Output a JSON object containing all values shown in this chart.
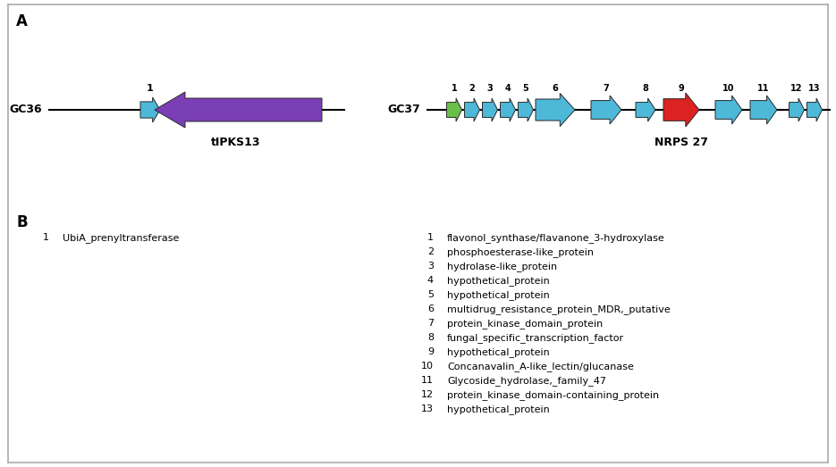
{
  "panel_A_label": "A",
  "panel_B_label": "B",
  "background_color": "#ffffff",
  "GC36_label": "GC36",
  "GC36_cluster_label": "tIPKS13",
  "GC37_label": "GC37",
  "GC37_cluster_label": "NRPS 27",
  "GC36_left_list": [
    {
      "num": "1",
      "text": "UbiA_prenyltransferase"
    }
  ],
  "GC37_right_list": [
    {
      "num": "1",
      "text": "flavonol_synthase/flavanone_3-hydroxylase"
    },
    {
      "num": "2",
      "text": "phosphoesterase-like_protein"
    },
    {
      "num": "3",
      "text": "hydrolase-like_protein"
    },
    {
      "num": "4",
      "text": "hypothetical_protein"
    },
    {
      "num": "5",
      "text": "hypothetical_protein"
    },
    {
      "num": "6",
      "text": "multidrug_resistance_protein_MDR,_putative"
    },
    {
      "num": "7",
      "text": "protein_kinase_domain_protein"
    },
    {
      "num": "8",
      "text": "fungal_specific_transcription_factor"
    },
    {
      "num": "9",
      "text": "hypothetical_protein"
    },
    {
      "num": "10",
      "text": "Concanavalin_A-like_lectin/glucanase"
    },
    {
      "num": "11",
      "text": "Glycoside_hydrolase,_family_47"
    },
    {
      "num": "12",
      "text": "protein_kinase_domain-containing_protein"
    },
    {
      "num": "13",
      "text": "hypothetical_protein"
    }
  ]
}
